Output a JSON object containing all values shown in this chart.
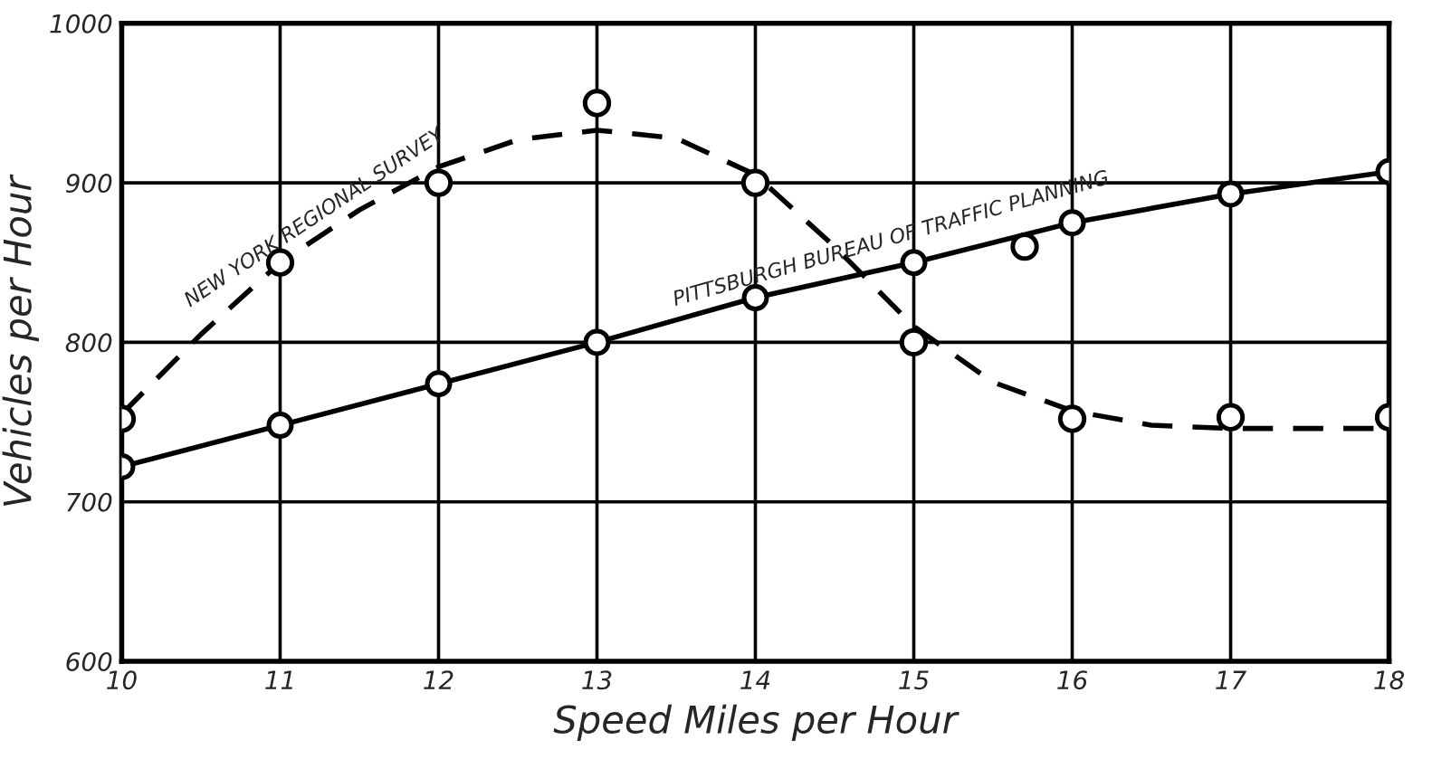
{
  "chart_data": {
    "type": "line",
    "xlabel": "Speed Miles per Hour",
    "ylabel": "Vehicles per Hour",
    "xlim": [
      10,
      18
    ],
    "ylim": [
      600,
      1000
    ],
    "xticks": [
      10,
      11,
      12,
      13,
      14,
      15,
      16,
      17,
      18
    ],
    "yticks": [
      600,
      700,
      800,
      900,
      1000
    ],
    "grid": true,
    "legend": false,
    "series": [
      {
        "type": "scatter",
        "color": "#000000",
        "marker": "circle",
        "x": [
          10,
          11,
          12,
          13,
          14,
          15,
          16,
          17,
          18
        ],
        "values": [
          752,
          850,
          900,
          950,
          900,
          800,
          752,
          753,
          753
        ]
      },
      {
        "name": "NEW YORK REGIONAL SURVEY",
        "color": "#000000",
        "line_style": "dashed",
        "marker": "none",
        "x": [
          10,
          10.5,
          11,
          11.5,
          12,
          12.5,
          13,
          13.5,
          14,
          14.5,
          15,
          15.5,
          16,
          16.5,
          17,
          17.5,
          18
        ],
        "values": [
          755,
          805,
          850,
          883,
          910,
          927,
          933,
          928,
          905,
          860,
          810,
          775,
          757,
          748,
          746,
          746,
          746
        ]
      },
      {
        "name": "PITTSBURGH BUREAU OF TRAFFIC PLANNING",
        "color": "#000000",
        "line_style": "solid",
        "marker": "circle",
        "x": [
          10,
          11,
          12,
          13,
          14,
          15,
          16,
          17,
          18
        ],
        "values": [
          722,
          748,
          774,
          800,
          828,
          850,
          875,
          893,
          907
        ]
      },
      {
        "type": "scatter",
        "color": "#000000",
        "marker": "circle",
        "x": [
          15.7
        ],
        "values": [
          860
        ]
      }
    ]
  }
}
